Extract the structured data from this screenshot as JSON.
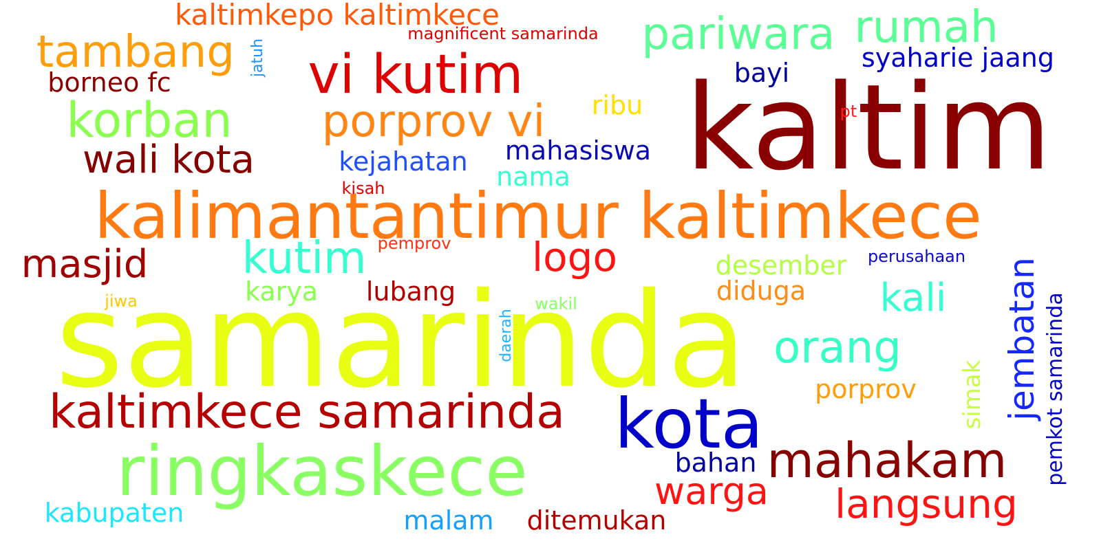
{
  "words": [
    {
      "text": "samarinda",
      "color": "#e8ff14",
      "vertical": false
    },
    {
      "text": "kaltim",
      "color": "#8a0000",
      "vertical": false
    },
    {
      "text": "kalimantantimur kaltimkece",
      "color": "#ff7a12",
      "vertical": false
    },
    {
      "text": "ringkaskece",
      "color": "#8aff64",
      "vertical": false
    },
    {
      "text": "kota",
      "color": "#0000c8",
      "vertical": false
    },
    {
      "text": "vi kutim",
      "color": "#dc0000",
      "vertical": false
    },
    {
      "text": "kaltimkece samarinda",
      "color": "#b40000",
      "vertical": false
    },
    {
      "text": "mahakam",
      "color": "#870000",
      "vertical": false
    },
    {
      "text": "korban",
      "color": "#8aff50",
      "vertical": false
    },
    {
      "text": "porprov vi",
      "color": "#ff8614",
      "vertical": false
    },
    {
      "text": "tambang",
      "color": "#ff9e0a",
      "vertical": false
    },
    {
      "text": "pariwara",
      "color": "#5aff96",
      "vertical": false
    },
    {
      "text": "rumah",
      "color": "#5aff96",
      "vertical": false
    },
    {
      "text": "orang",
      "color": "#37ffc8",
      "vertical": false
    },
    {
      "text": "wali kota",
      "color": "#870000",
      "vertical": false
    },
    {
      "text": "kutim",
      "color": "#37ffd2",
      "vertical": false
    },
    {
      "text": "logo",
      "color": "#ff1414",
      "vertical": false
    },
    {
      "text": "masjid",
      "color": "#a00000",
      "vertical": false
    },
    {
      "text": "jembatan",
      "color": "#1428ff",
      "vertical": true
    },
    {
      "text": "langsung",
      "color": "#ff1414",
      "vertical": false
    },
    {
      "text": "warga",
      "color": "#ff1414",
      "vertical": false
    },
    {
      "text": "kali",
      "color": "#37ffd2",
      "vertical": false
    },
    {
      "text": "kaltimkepo kaltimkece",
      "color": "#ff5a0a",
      "vertical": false
    },
    {
      "text": "borneo fc",
      "color": "#8a0000",
      "vertical": false
    },
    {
      "text": "syaharie jaang",
      "color": "#0000c8",
      "vertical": false
    },
    {
      "text": "pemkot samarinda",
      "color": "#0000c8",
      "vertical": true
    },
    {
      "text": "kabupaten",
      "color": "#1ee6ff",
      "vertical": false
    },
    {
      "text": "ditemukan",
      "color": "#b40000",
      "vertical": false
    },
    {
      "text": "malam",
      "color": "#14a0ff",
      "vertical": false
    },
    {
      "text": "bahan",
      "color": "#0000a0",
      "vertical": false
    },
    {
      "text": "porprov",
      "color": "#ff9e0a",
      "vertical": false
    },
    {
      "text": "kejahatan",
      "color": "#1e50ff",
      "vertical": false
    },
    {
      "text": "mahasiswa",
      "color": "#0a0ab4",
      "vertical": false
    },
    {
      "text": "desember",
      "color": "#b4ff46",
      "vertical": false
    },
    {
      "text": "diduga",
      "color": "#ff8c14",
      "vertical": false
    },
    {
      "text": "lubang",
      "color": "#b40000",
      "vertical": false
    },
    {
      "text": "karya",
      "color": "#8aff50",
      "vertical": false
    },
    {
      "text": "bayi",
      "color": "#00009b",
      "vertical": false
    },
    {
      "text": "ribu",
      "color": "#ffe100",
      "vertical": false
    },
    {
      "text": "nama",
      "color": "#37ffd2",
      "vertical": false
    },
    {
      "text": "simak",
      "color": "#c8ff3c",
      "vertical": true
    },
    {
      "text": "magnificent samarinda",
      "color": "#e10000",
      "vertical": false
    },
    {
      "text": "kisah",
      "color": "#e10000",
      "vertical": false
    },
    {
      "text": "pemprov",
      "color": "#ff3214",
      "vertical": false
    },
    {
      "text": "perusahaan",
      "color": "#0a0ad2",
      "vertical": false
    },
    {
      "text": "pt",
      "color": "#ff1e1e",
      "vertical": false
    },
    {
      "text": "jatuh",
      "color": "#1e90ff",
      "vertical": true
    },
    {
      "text": "daerah",
      "color": "#1eb4ff",
      "vertical": true
    },
    {
      "text": "wakil",
      "color": "#8aff64",
      "vertical": false
    },
    {
      "text": "jiwa",
      "color": "#ffc800",
      "vertical": false
    }
  ]
}
